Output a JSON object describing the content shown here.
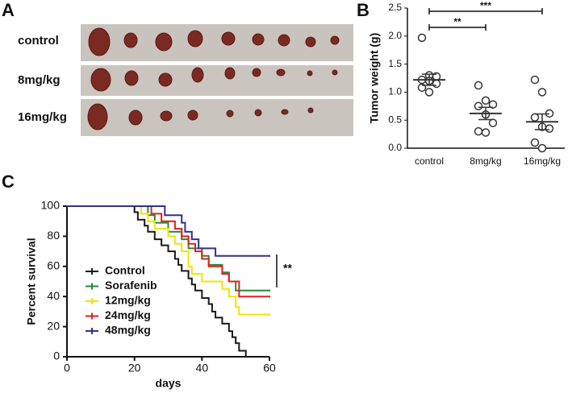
{
  "photo_panel": {
    "panel_label": "A",
    "rows": [
      "control",
      "8mg/kg",
      "16mg/kg"
    ]
  },
  "chart_data": [
    {
      "type": "dot_plot",
      "panel_label": "B",
      "y_label": "Tumor weight (g)",
      "categories": [
        "control",
        "8mg/kg",
        "16mg/kg"
      ],
      "points": [
        [
          1.97,
          1.3,
          1.28,
          1.22,
          1.2,
          1.15,
          1.08,
          1.0
        ],
        [
          1.12,
          0.85,
          0.78,
          0.75,
          0.6,
          0.45,
          0.3,
          0.28
        ],
        [
          1.22,
          1.0,
          0.62,
          0.55,
          0.38,
          0.35,
          0.1,
          0.0
        ]
      ],
      "means": [
        1.22,
        0.62,
        0.47
      ],
      "sems": [
        0.1,
        0.11,
        0.14
      ],
      "color": "#333333",
      "ylim": [
        0,
        2.5
      ],
      "yticks": [
        {
          "value": 0,
          "label": "0.0"
        },
        {
          "value": 0.5,
          "label": "0.5"
        },
        {
          "value": 1,
          "label": "1.0"
        },
        {
          "value": 1.5,
          "label": "1.5"
        },
        {
          "value": 2,
          "label": "2.0"
        },
        {
          "value": 2.5,
          "label": "2.5"
        }
      ],
      "significance": [
        {
          "label": "**",
          "between": [
            "control",
            "8mg/kg"
          ]
        },
        {
          "label": "***",
          "between": [
            "control",
            "16mg/kg"
          ]
        }
      ]
    },
    {
      "type": "survival",
      "panel_label": "C",
      "x_label": "days",
      "y_label": "Percent survival",
      "xlim": [
        0,
        60
      ],
      "xticks": [
        0,
        20,
        40,
        60
      ],
      "ylim": [
        0,
        100
      ],
      "yticks": [
        0,
        20,
        40,
        60,
        80,
        100
      ],
      "significance": "**",
      "series": [
        {
          "name": "Control",
          "color": "#1a1a1a",
          "x": [
            0,
            20,
            21,
            23,
            24,
            26,
            28,
            30,
            32,
            33,
            34,
            36,
            37,
            38,
            40,
            42,
            43,
            44,
            46,
            48,
            49,
            50,
            51,
            53
          ],
          "values": [
            100,
            96,
            91,
            87,
            83,
            78,
            74,
            70,
            65,
            61,
            57,
            52,
            48,
            44,
            39,
            35,
            30,
            26,
            22,
            17,
            13,
            9,
            4,
            0
          ]
        },
        {
          "name": "Sorafenib",
          "color": "#1e8c3a",
          "x": [
            0,
            24,
            26,
            30,
            34,
            36,
            40,
            42,
            46,
            48,
            50,
            60
          ],
          "values": [
            100,
            94,
            89,
            83,
            78,
            72,
            67,
            61,
            56,
            50,
            44,
            44
          ]
        },
        {
          "name": "12mg/kg",
          "color": "#f0e400",
          "x": [
            0,
            22,
            24,
            26,
            30,
            32,
            34,
            36,
            37,
            40,
            46,
            48,
            50,
            51,
            60
          ],
          "values": [
            100,
            95,
            90,
            85,
            80,
            75,
            70,
            60,
            55,
            50,
            45,
            40,
            33,
            28,
            28
          ]
        },
        {
          "name": "24mg/kg",
          "color": "#e0201b",
          "x": [
            0,
            25,
            28,
            32,
            34,
            36,
            38,
            40,
            42,
            46,
            48,
            51,
            60
          ],
          "values": [
            100,
            95,
            90,
            85,
            80,
            75,
            70,
            65,
            60,
            55,
            50,
            40,
            40
          ]
        },
        {
          "name": "48mg/kg",
          "color": "#2e3191",
          "x": [
            0,
            29,
            34,
            35,
            37,
            39,
            44,
            60
          ],
          "values": [
            100,
            94,
            89,
            83,
            78,
            72,
            67,
            67
          ]
        }
      ]
    }
  ]
}
